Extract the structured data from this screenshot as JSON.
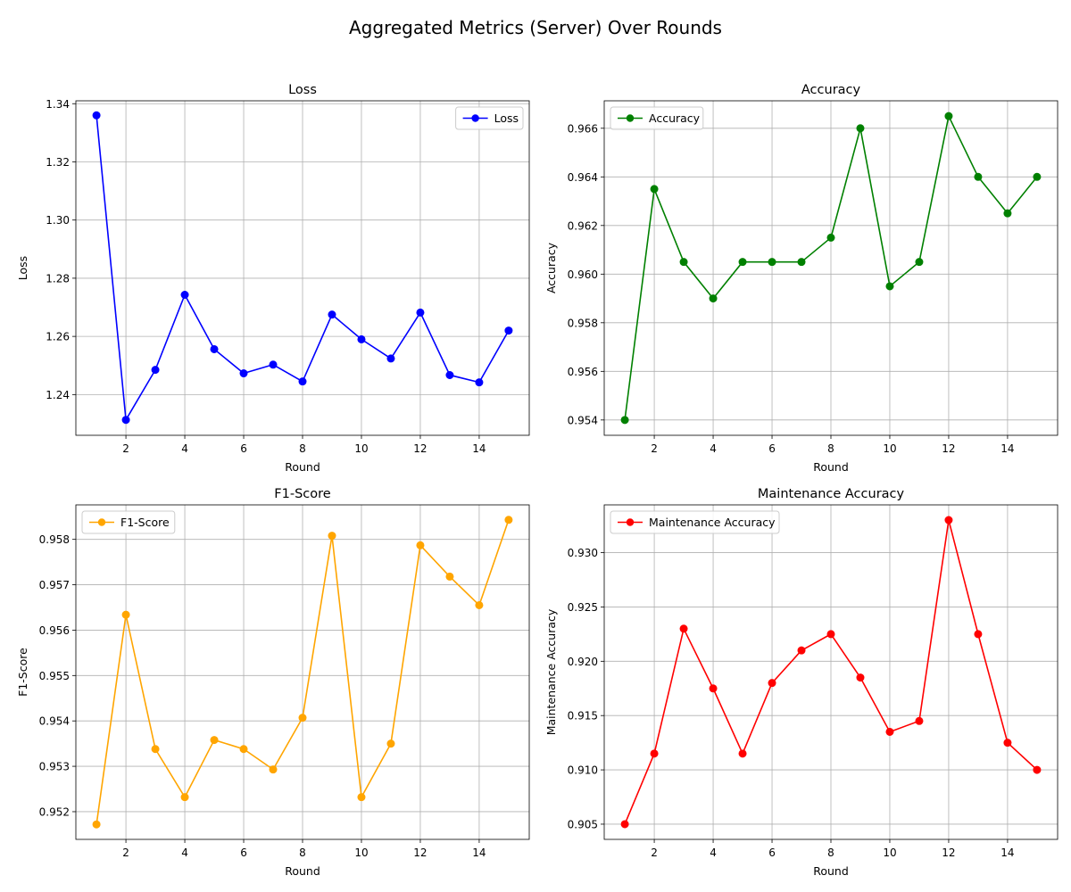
{
  "suptitle": "Aggregated Metrics (Server) Over Rounds",
  "chart_data": [
    {
      "type": "line",
      "title": "Loss",
      "xlabel": "Round",
      "ylabel": "Loss",
      "x": [
        1,
        2,
        3,
        4,
        5,
        6,
        7,
        8,
        9,
        10,
        11,
        12,
        13,
        14,
        15
      ],
      "series": [
        {
          "name": "Loss",
          "color": "#0000ff",
          "values": [
            1.336,
            1.2313,
            1.2485,
            1.2743,
            1.2556,
            1.2473,
            1.2503,
            1.2445,
            1.2675,
            1.259,
            1.2524,
            1.2682,
            1.2467,
            1.2442,
            1.262
          ]
        }
      ],
      "xlim": [
        0.3,
        15.7
      ],
      "ylim": [
        1.226,
        1.341
      ],
      "xticks": [
        2,
        4,
        6,
        8,
        10,
        12,
        14
      ],
      "yticks": [
        1.24,
        1.26,
        1.28,
        1.3,
        1.32,
        1.34
      ],
      "ytick_labels": [
        "1.24",
        "1.26",
        "1.28",
        "1.30",
        "1.32",
        "1.34"
      ],
      "grid": true,
      "legend_position": "top-right"
    },
    {
      "type": "line",
      "title": "Accuracy",
      "xlabel": "Round",
      "ylabel": "Accuracy",
      "x": [
        1,
        2,
        3,
        4,
        5,
        6,
        7,
        8,
        9,
        10,
        11,
        12,
        13,
        14,
        15
      ],
      "series": [
        {
          "name": "Accuracy",
          "color": "#008000",
          "values": [
            0.954,
            0.9635,
            0.9605,
            0.959,
            0.9605,
            0.9605,
            0.9605,
            0.9615,
            0.966,
            0.9595,
            0.9605,
            0.9665,
            0.964,
            0.9625,
            0.964
          ]
        }
      ],
      "xlim": [
        0.3,
        15.7
      ],
      "ylim": [
        0.95337,
        0.96713
      ],
      "xticks": [
        2,
        4,
        6,
        8,
        10,
        12,
        14
      ],
      "yticks": [
        0.954,
        0.956,
        0.958,
        0.96,
        0.962,
        0.964,
        0.966
      ],
      "ytick_labels": [
        "0.954",
        "0.956",
        "0.958",
        "0.960",
        "0.962",
        "0.964",
        "0.966"
      ],
      "grid": true,
      "legend_position": "top-left"
    },
    {
      "type": "line",
      "title": "F1-Score",
      "xlabel": "Round",
      "ylabel": "F1-Score",
      "x": [
        1,
        2,
        3,
        4,
        5,
        6,
        7,
        8,
        9,
        10,
        11,
        12,
        13,
        14,
        15
      ],
      "series": [
        {
          "name": "F1-Score",
          "color": "#ffa500",
          "values": [
            0.95172,
            0.95634,
            0.95338,
            0.95232,
            0.95358,
            0.95338,
            0.95293,
            0.95407,
            0.95808,
            0.95232,
            0.9535,
            0.95787,
            0.95718,
            0.95655,
            0.95843
          ]
        }
      ],
      "xlim": [
        0.3,
        15.7
      ],
      "ylim": [
        0.95139,
        0.95876
      ],
      "xticks": [
        2,
        4,
        6,
        8,
        10,
        12,
        14
      ],
      "yticks": [
        0.952,
        0.953,
        0.954,
        0.955,
        0.956,
        0.957,
        0.958
      ],
      "ytick_labels": [
        "0.952",
        "0.953",
        "0.954",
        "0.955",
        "0.956",
        "0.957",
        "0.958"
      ],
      "grid": true,
      "legend_position": "top-left"
    },
    {
      "type": "line",
      "title": "Maintenance Accuracy",
      "xlabel": "Round",
      "ylabel": "Maintenance Accuracy",
      "x": [
        1,
        2,
        3,
        4,
        5,
        6,
        7,
        8,
        9,
        10,
        11,
        12,
        13,
        14,
        15
      ],
      "series": [
        {
          "name": "Maintenance Accuracy",
          "color": "#ff0000",
          "values": [
            0.905,
            0.9115,
            0.923,
            0.9175,
            0.9115,
            0.918,
            0.921,
            0.9225,
            0.9185,
            0.9135,
            0.9145,
            0.933,
            0.9225,
            0.9125,
            0.91
          ]
        }
      ],
      "xlim": [
        0.3,
        15.7
      ],
      "ylim": [
        0.9036,
        0.9344
      ],
      "xticks": [
        2,
        4,
        6,
        8,
        10,
        12,
        14
      ],
      "yticks": [
        0.905,
        0.91,
        0.915,
        0.92,
        0.925,
        0.93
      ],
      "ytick_labels": [
        "0.905",
        "0.910",
        "0.915",
        "0.920",
        "0.925",
        "0.930"
      ],
      "grid": true,
      "legend_position": "top-left"
    }
  ]
}
